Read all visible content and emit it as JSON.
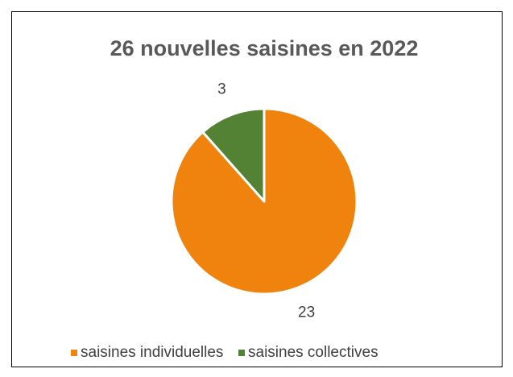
{
  "chart_data": {
    "type": "pie",
    "title": "26 nouvelles saisines en 2022",
    "categories": [
      "saisines individuelles",
      "saisines collectives"
    ],
    "values": [
      23,
      3
    ],
    "colors": [
      "#F0820E",
      "#548235"
    ],
    "legend": "bottom"
  }
}
